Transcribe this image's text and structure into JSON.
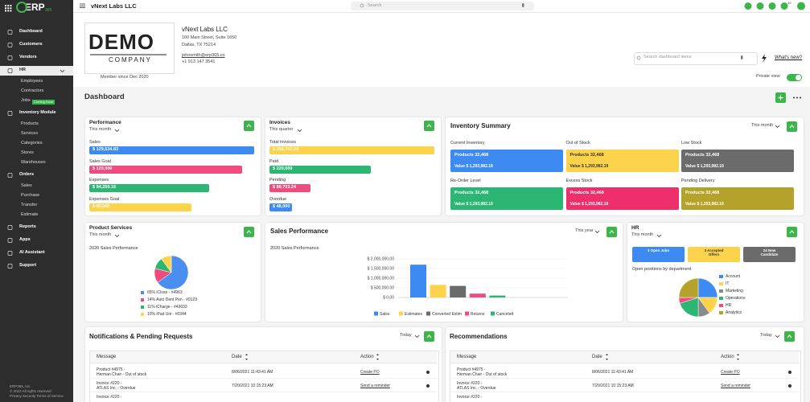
{
  "sidebar": {
    "logo": "ERP",
    "logo_suffix": "365",
    "items": [
      {
        "label": "Dashboard"
      },
      {
        "label": "Customers"
      },
      {
        "label": "Vendors"
      },
      {
        "label": "HR",
        "active": true,
        "children": [
          {
            "label": "Employees"
          },
          {
            "label": "Contractors"
          },
          {
            "label": "Jobs",
            "badge": "Coming Soon"
          }
        ]
      },
      {
        "label": "Inventory Module",
        "children": [
          {
            "label": "Products"
          },
          {
            "label": "Services"
          },
          {
            "label": "Categories"
          },
          {
            "label": "Stores"
          },
          {
            "label": "Warehouses"
          }
        ]
      },
      {
        "label": "Orders",
        "children": [
          {
            "label": "Sales"
          },
          {
            "label": "Purchase"
          },
          {
            "label": "Transfer"
          },
          {
            "label": "Estimate"
          }
        ]
      },
      {
        "label": "Reports"
      },
      {
        "label": "Apps"
      },
      {
        "label": "AI Assistant"
      },
      {
        "label": "Support"
      }
    ],
    "footer": [
      "ERP365, Inc.",
      "© 2022 All rights reserved",
      "Privacy   Security   Terms of Service"
    ]
  },
  "topbar": {
    "company": "vNext Labs LLC",
    "search_placeholder": "Search",
    "notification_count": "10",
    "avatar": "AJ"
  },
  "company": {
    "logo_top": "DEMO",
    "logo_bottom": "COMPANY",
    "name": "vNext Labs LLC",
    "address": [
      "100 Main Street, Suite 1650",
      "Dallas, TX 75214"
    ],
    "email": "johnsmith@erp365.co",
    "phone": "+1 913 147 3541",
    "member_since": "Member since Dec 2020"
  },
  "toolbar": {
    "search_placeholder": "Search dashboard items",
    "whats_new": "What's new?",
    "private_view": "Private view"
  },
  "dashboard_title": "Dashboard",
  "performance": {
    "title": "Performance",
    "period": "This month",
    "items": [
      {
        "label": "Sales",
        "value": 129534.83,
        "value_label": "$ 129,534.83",
        "color": "#3d8bf2"
      },
      {
        "label": "Sales Goal",
        "value": 120000,
        "value_label": "$ 120,000",
        "color": "#ef4b7f"
      },
      {
        "label": "Expenses",
        "value": 94250.16,
        "value_label": "$ 94,250.16",
        "color": "#2bb673"
      },
      {
        "label": "Expenses Goal",
        "value": 80000,
        "value_label": "$ 80,000",
        "color": "#fdd34b"
      }
    ]
  },
  "invoices": {
    "title": "Invoices",
    "period": "This quarter",
    "items": [
      {
        "label": "Total invoices",
        "value": 356703.24,
        "value_label": "$ 356,703.24",
        "color": "#fdd34b"
      },
      {
        "label": "Paid",
        "value": 220000,
        "value_label": "$ 220,000",
        "color": "#2bb673"
      },
      {
        "label": "Pending",
        "value": 88703.24,
        "value_label": "$ 88,703.24",
        "color": "#ef4b7f"
      },
      {
        "label": "Overdue",
        "value": 48000,
        "value_label": "$ 48,000",
        "color": "#3d8bf2"
      }
    ]
  },
  "inventory": {
    "title": "Inventory Summary",
    "period": "This month",
    "tiles": [
      {
        "label": "Current Inventory",
        "products": "Products 32,468",
        "value": "Value $ 1,293,982.19",
        "color": "#3d8bf2",
        "text_color": "#ffffff"
      },
      {
        "label": "Out of Stock",
        "products": "Products 32,468",
        "value": "Value $ 1,293,982.19",
        "color": "#fdd34b",
        "text_color": "#333333"
      },
      {
        "label": "Low Stock",
        "products": "Products 32,468",
        "value": "Value $ 1,293,982.19",
        "color": "#6b6b6b",
        "text_color": "#ffffff"
      },
      {
        "label": "Re-Order Level",
        "products": "Products 32,468",
        "value": "Value $ 1,293,982.19",
        "color": "#2bb673",
        "text_color": "#ffffff"
      },
      {
        "label": "Excess Stock",
        "products": "Products 32,468",
        "value": "Value $ 1,293,982.19",
        "color": "#ef2f6b",
        "text_color": "#ffffff"
      },
      {
        "label": "Pending Delivery",
        "products": "Products 32,468",
        "value": "Value $ 1,293,982.19",
        "color": "#b5a22a",
        "text_color": "#ffffff"
      }
    ]
  },
  "product_services": {
    "title": "Product Services",
    "period": "This month",
    "subtitle": "2020 Sales Performance",
    "type": "pie",
    "labels": [
      "65% iClose - #4963",
      "14% Auto Dent Pen - #0123",
      "11% iCharge - #43033",
      "10% iPad Uni - #0344"
    ],
    "values": [
      65,
      14,
      11,
      10
    ],
    "colors": [
      "#4a8ff0",
      "#ef4b7f",
      "#2bb673",
      "#fdd34b"
    ]
  },
  "sales_performance": {
    "title": "Sales Performance",
    "period": "This year",
    "subtitle": "2020 Sales Performance",
    "type": "bar",
    "categories": [
      "Sales",
      "Estimates",
      "Converted Estim",
      "Returns",
      "Canceled"
    ],
    "values": [
      1700000,
      650000,
      600000,
      200000,
      100000
    ],
    "colors": [
      "#3d8bf2",
      "#fdd34b",
      "#6b6b6b",
      "#ef4b7f",
      "#2bb673"
    ],
    "ylim": [
      0,
      2000000
    ],
    "yticks": [
      {
        "value": 0,
        "label": "$ 0.00"
      },
      {
        "value": 500000,
        "label": "$ 500,000.00"
      },
      {
        "value": 1000000,
        "label": "$ 1,000,000.00"
      },
      {
        "value": 1500000,
        "label": "$ 1,500,000.00"
      },
      {
        "value": 2000000,
        "label": "$ 2,000,000.00"
      }
    ],
    "grid": true
  },
  "hr": {
    "title": "HR",
    "period": "This month",
    "tiles": [
      {
        "text": "3 Open Jobs",
        "color": "#3d8bf2",
        "text_color": "#ffffff"
      },
      {
        "text": "3 Accepted Offers",
        "color": "#fdd34b",
        "text_color": "#333333"
      },
      {
        "text": "24 New Candidate",
        "color": "#6b6b6b",
        "text_color": "#ffffff"
      }
    ],
    "chart_title": "Open positions by department",
    "type": "pie",
    "categories": [
      "Account",
      "IT",
      "Marketing",
      "Operations",
      "HR",
      "Analytics"
    ],
    "values": [
      25,
      15,
      10,
      20,
      5,
      25
    ],
    "colors": [
      "#3d8bf2",
      "#fdd34b",
      "#8a8a8a",
      "#2bb673",
      "#ef4b7f",
      "#b5a22a"
    ]
  },
  "notifications": {
    "title": "Notifications & Pending Requests",
    "period": "Today",
    "columns": [
      "Message",
      "Date",
      "Action"
    ],
    "rows": [
      {
        "message": [
          "Product #4975 -",
          "Herman Chair - Out of stock"
        ],
        "date": "8/06/2021 11:43:41 AM",
        "action": "Create PO"
      },
      {
        "message": [
          "Invoice #220 -",
          "ATLAS Inc. - Overdue"
        ],
        "date": "7/20/2021 10:15:23 AM",
        "action": "Send a reminder"
      },
      {
        "message": [
          "Invoice #220 -"
        ]
      }
    ]
  },
  "recommendations": {
    "title": "Recommendations",
    "period": "Today",
    "columns": [
      "Message",
      "Date",
      "Action"
    ],
    "rows": [
      {
        "message": [
          "Product #4975 -",
          "Herman Chair - Out of stock"
        ],
        "date": "8/06/2021 11:43:41 AM",
        "action": "Create PO"
      },
      {
        "message": [
          "Invoice #220 -",
          "ATLAS Inc. - Overdue"
        ],
        "date": "7/20/2021 10:15:23 AM",
        "action": "Send a reminder"
      },
      {
        "message": [
          "Invoice #220 -"
        ]
      }
    ]
  }
}
